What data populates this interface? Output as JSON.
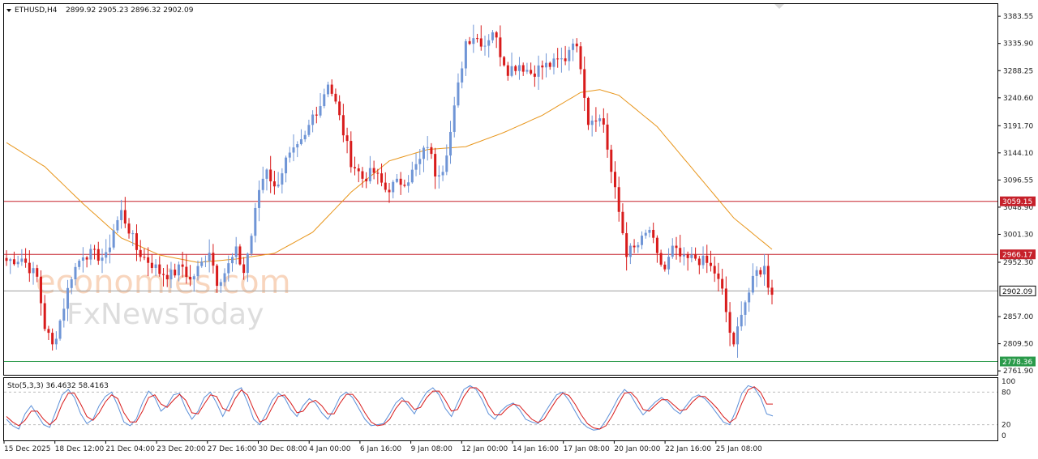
{
  "header": {
    "symbol": "ETHUSD,H4",
    "ohlc": "2899.92 2905.23 2896.32 2902.09",
    "dropdown_icon": "triangle-down-icon"
  },
  "watermark": {
    "line1": "economies.com",
    "line2": "FxNewsToday"
  },
  "colors": {
    "bull": "#6f95d6",
    "bear": "#d81b1b",
    "ma": "#e8961c",
    "resistance": "#c6202a",
    "support": "#2a9a4a",
    "current": "#9e9e9e",
    "stoch_main": "#5b8fd8",
    "stoch_signal": "#d81b1b"
  },
  "chart_data": [
    {
      "type": "candlestick",
      "title": "ETHUSD,H4",
      "y_ticks": [
        "3383.55",
        "3335.90",
        "3288.25",
        "3240.60",
        "3191.70",
        "3144.10",
        "3096.55",
        "3048.90",
        "3001.30",
        "2952.30",
        "2857.00",
        "2809.50",
        "2761.90"
      ],
      "x_ticks": [
        "15 Dec 2025",
        "18 Dec 12:00",
        "21 Dec 04:00",
        "23 Dec 20:00",
        "27 Dec 16:00",
        "30 Dec 08:00",
        "4 Jan 00:00",
        "6 Jan 16:00",
        "9 Jan 08:00",
        "12 Jan 00:00",
        "14 Jan 16:00",
        "17 Jan 08:00",
        "20 Jan 00:00",
        "22 Jan 16:00",
        "25 Jan 08:00"
      ],
      "ylim": [
        2755,
        3405
      ],
      "levels": {
        "resistance_high": {
          "value": 3059.15,
          "label": "3059.15"
        },
        "resistance_low": {
          "value": 2966.17,
          "label": "2966.17"
        },
        "current": {
          "value": 2902.09,
          "label": "2902.09"
        },
        "support": {
          "value": 2778.36,
          "label": "2778.36"
        }
      },
      "price_path": [
        [
          0,
          2955
        ],
        [
          4,
          2960
        ],
        [
          8,
          2925
        ],
        [
          10,
          2840
        ],
        [
          12,
          2805
        ],
        [
          14,
          2850
        ],
        [
          17,
          2930
        ],
        [
          20,
          2968
        ],
        [
          23,
          2965
        ],
        [
          26,
          2960
        ],
        [
          28,
          3010
        ],
        [
          30,
          3040
        ],
        [
          32,
          3010
        ],
        [
          34,
          2975
        ],
        [
          36,
          2960
        ],
        [
          38,
          2950
        ],
        [
          40,
          2935
        ],
        [
          43,
          2930
        ],
        [
          46,
          2945
        ],
        [
          48,
          2920
        ],
        [
          51,
          2950
        ],
        [
          53,
          2975
        ],
        [
          55,
          2920
        ],
        [
          57,
          2935
        ],
        [
          60,
          2970
        ],
        [
          62,
          2935
        ],
        [
          64,
          3000
        ],
        [
          66,
          3080
        ],
        [
          68,
          3120
        ],
        [
          70,
          3080
        ],
        [
          73,
          3130
        ],
        [
          76,
          3150
        ],
        [
          78,
          3170
        ],
        [
          80,
          3210
        ],
        [
          82,
          3230
        ],
        [
          84,
          3270
        ],
        [
          86,
          3230
        ],
        [
          88,
          3180
        ],
        [
          90,
          3130
        ],
        [
          93,
          3100
        ],
        [
          96,
          3110
        ],
        [
          99,
          3080
        ],
        [
          102,
          3090
        ],
        [
          105,
          3100
        ],
        [
          108,
          3130
        ],
        [
          110,
          3160
        ],
        [
          112,
          3110
        ],
        [
          114,
          3120
        ],
        [
          116,
          3180
        ],
        [
          118,
          3260
        ],
        [
          120,
          3340
        ],
        [
          122,
          3350
        ],
        [
          125,
          3335
        ],
        [
          127,
          3360
        ],
        [
          129,
          3320
        ],
        [
          131,
          3290
        ],
        [
          134,
          3300
        ],
        [
          137,
          3285
        ],
        [
          140,
          3295
        ],
        [
          143,
          3300
        ],
        [
          146,
          3310
        ],
        [
          148,
          3345
        ],
        [
          150,
          3300
        ],
        [
          152,
          3200
        ],
        [
          154,
          3210
        ],
        [
          156,
          3195
        ],
        [
          158,
          3110
        ],
        [
          160,
          3040
        ],
        [
          162,
          2970
        ],
        [
          164,
          2975
        ],
        [
          166,
          2990
        ],
        [
          168,
          3010
        ],
        [
          170,
          2960
        ],
        [
          172,
          2940
        ],
        [
          174,
          2975
        ],
        [
          177,
          2955
        ],
        [
          180,
          2960
        ],
        [
          183,
          2950
        ],
        [
          185,
          2935
        ],
        [
          187,
          2900
        ],
        [
          189,
          2830
        ],
        [
          190,
          2800
        ],
        [
          192,
          2870
        ],
        [
          194,
          2900
        ],
        [
          196,
          2935
        ],
        [
          198,
          2942
        ],
        [
          199,
          2915
        ],
        [
          200,
          2902
        ]
      ],
      "ma_period_label": "MA",
      "ma_path": [
        [
          0,
          3162
        ],
        [
          10,
          3120
        ],
        [
          20,
          3055
        ],
        [
          30,
          2995
        ],
        [
          40,
          2965
        ],
        [
          50,
          2952
        ],
        [
          60,
          2958
        ],
        [
          70,
          2968
        ],
        [
          80,
          3005
        ],
        [
          90,
          3075
        ],
        [
          100,
          3130
        ],
        [
          110,
          3150
        ],
        [
          120,
          3155
        ],
        [
          130,
          3180
        ],
        [
          140,
          3210
        ],
        [
          150,
          3250
        ],
        [
          155,
          3255
        ],
        [
          160,
          3245
        ],
        [
          170,
          3190
        ],
        [
          180,
          3110
        ],
        [
          190,
          3030
        ],
        [
          200,
          2975
        ]
      ]
    },
    {
      "type": "line",
      "title": "Sto(5,3,3) 36.4632 58.4163",
      "indicator": "Stochastic Oscillator",
      "params": "5,3,3",
      "main_value": "36.4632",
      "signal_value": "58.4163",
      "y_ticks": [
        "100",
        "80",
        "20",
        "0"
      ],
      "ylim": [
        0,
        100
      ],
      "levels": [
        80,
        20
      ],
      "series": [
        {
          "role": "main",
          "values": [
            30,
            18,
            12,
            40,
            55,
            38,
            20,
            15,
            45,
            75,
            85,
            70,
            40,
            22,
            30,
            55,
            72,
            80,
            55,
            25,
            18,
            30,
            60,
            82,
            70,
            45,
            55,
            75,
            78,
            50,
            30,
            45,
            70,
            80,
            60,
            35,
            58,
            82,
            88,
            62,
            30,
            20,
            40,
            65,
            78,
            70,
            48,
            35,
            55,
            68,
            60,
            42,
            30,
            48,
            72,
            80,
            70,
            50,
            30,
            18,
            20,
            22,
            40,
            60,
            70,
            55,
            40,
            62,
            80,
            88,
            75,
            50,
            35,
            60,
            85,
            92,
            85,
            65,
            40,
            30,
            45,
            55,
            60,
            48,
            30,
            25,
            22,
            40,
            58,
            75,
            80,
            65,
            45,
            25,
            15,
            10,
            12,
            28,
            48,
            70,
            85,
            75,
            55,
            38,
            50,
            62,
            70,
            62,
            48,
            40,
            55,
            70,
            75,
            68,
            55,
            40,
            25,
            20,
            45,
            78,
            92,
            88,
            70,
            40,
            36
          ]
        },
        {
          "role": "signal",
          "values": [
            35,
            25,
            18,
            28,
            45,
            45,
            30,
            20,
            30,
            58,
            78,
            78,
            58,
            35,
            28,
            42,
            62,
            75,
            68,
            42,
            25,
            25,
            45,
            70,
            75,
            58,
            52,
            65,
            76,
            65,
            42,
            40,
            58,
            75,
            72,
            50,
            45,
            68,
            84,
            75,
            48,
            25,
            30,
            52,
            72,
            75,
            60,
            42,
            45,
            60,
            65,
            55,
            40,
            40,
            60,
            76,
            76,
            62,
            42,
            25,
            18,
            20,
            30,
            50,
            64,
            62,
            48,
            52,
            70,
            82,
            82,
            65,
            45,
            48,
            72,
            88,
            88,
            78,
            55,
            38,
            38,
            50,
            58,
            55,
            42,
            30,
            24,
            30,
            48,
            66,
            78,
            74,
            58,
            38,
            22,
            14,
            12,
            18,
            36,
            58,
            78,
            80,
            68,
            48,
            45,
            56,
            66,
            66,
            56,
            46,
            48,
            62,
            72,
            72,
            62,
            50,
            35,
            24,
            32,
            60,
            84,
            90,
            80,
            58,
            58
          ]
        }
      ]
    }
  ]
}
